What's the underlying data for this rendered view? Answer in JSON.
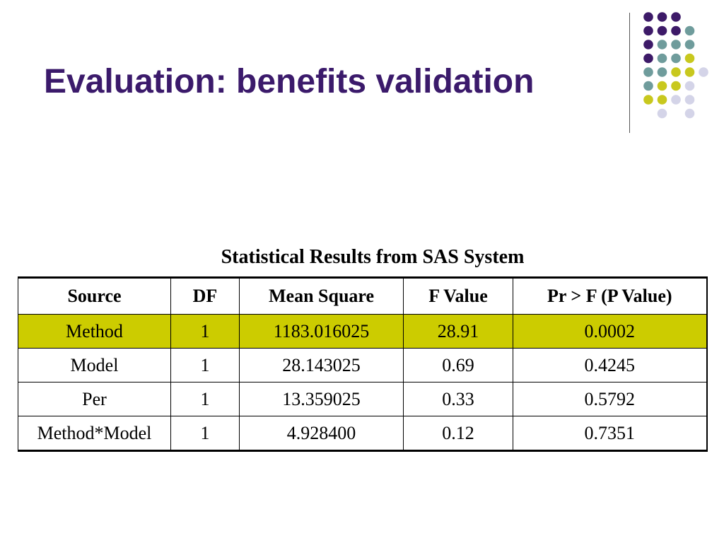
{
  "slide": {
    "title": "Evaluation: benefits validation",
    "title_color": "#3b1a6b"
  },
  "decoration": {
    "palette": {
      "purple": "#3d1a68",
      "teal": "#6f9c9c",
      "olive": "#c8c81e",
      "lavender": "#d4d4e8"
    },
    "dot_grid": [
      [
        "purple",
        "purple",
        "purple",
        null,
        null
      ],
      [
        "purple",
        "purple",
        "purple",
        "teal",
        null
      ],
      [
        "purple",
        "teal",
        "teal",
        "teal",
        null
      ],
      [
        "purple",
        "teal",
        "teal",
        "olive",
        null
      ],
      [
        "teal",
        "teal",
        "olive",
        "olive",
        "lavender"
      ],
      [
        "teal",
        "olive",
        "olive",
        "lavender",
        null
      ],
      [
        "olive",
        "olive",
        "lavender",
        "lavender",
        null
      ],
      [
        null,
        "lavender",
        null,
        "lavender",
        null
      ]
    ]
  },
  "table": {
    "caption": "Statistical Results from SAS System",
    "highlight_color": "#cccc00",
    "headers": [
      "Source",
      "DF",
      "Mean Square",
      "F Value",
      "Pr > F (P Value)"
    ],
    "rows": [
      {
        "cells": [
          "Method",
          "1",
          "1183.016025",
          "28.91",
          "0.0002"
        ],
        "highlighted": true
      },
      {
        "cells": [
          "Model",
          "1",
          "28.143025",
          "0.69",
          "0.4245"
        ],
        "highlighted": false
      },
      {
        "cells": [
          "Per",
          "1",
          "13.359025",
          "0.33",
          "0.5792"
        ],
        "highlighted": false
      },
      {
        "cells": [
          "Method*Model",
          "1",
          "4.928400",
          "0.12",
          "0.7351"
        ],
        "highlighted": false
      }
    ]
  }
}
